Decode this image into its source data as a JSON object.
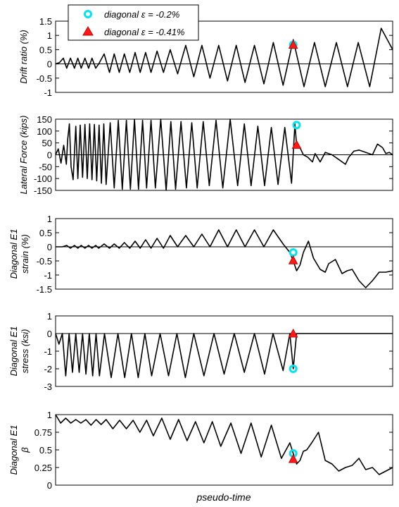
{
  "xlabel": "pseudo-time",
  "legend": {
    "placement": "top-left",
    "entries": [
      {
        "name": "diagonal ε = -0.2%",
        "marker": "circle",
        "color": "#00e5ee"
      },
      {
        "name": "diagonal ε = -0.41%",
        "marker": "triangle",
        "color": "#ff1a1a"
      }
    ]
  },
  "chart_data": [
    {
      "type": "line",
      "ylabel": "Drift ratio (%)",
      "xlim": [
        0,
        100
      ],
      "ylim": [
        -1,
        1.5
      ],
      "yticks": [
        -1,
        -0.5,
        0,
        0.5,
        1,
        1.5
      ],
      "ytick_labels": [
        "-1",
        "-0.5",
        "0",
        "0.5",
        "1",
        "1.5"
      ],
      "zero_line": true,
      "x": [
        0,
        1.2,
        2.3,
        3.3,
        4.4,
        5.6,
        6.6,
        7.6,
        8.7,
        9.8,
        10.8,
        11.9,
        12.8,
        14.4,
        16,
        17.4,
        18.9,
        20.4,
        22,
        23.6,
        25.1,
        26.7,
        28.3,
        30.1,
        32,
        34,
        36.2,
        38.6,
        41,
        43.4,
        45.8,
        48.4,
        51,
        53.6,
        56.2,
        59,
        61.8,
        64.6,
        67.5,
        70.5,
        73.7,
        76.8,
        80,
        83.3,
        86.6,
        89.8,
        93.2,
        96.6,
        100
      ],
      "y": [
        0,
        0.05,
        0.2,
        -0.15,
        0.2,
        -0.15,
        0.2,
        -0.15,
        0.2,
        -0.15,
        0.2,
        -0.15,
        0,
        0.35,
        -0.3,
        0.35,
        -0.3,
        0.35,
        -0.3,
        0.4,
        -0.3,
        0.4,
        -0.3,
        0.45,
        -0.3,
        0.5,
        -0.35,
        0.65,
        -0.45,
        0.65,
        -0.5,
        0.65,
        -0.6,
        0.65,
        -0.65,
        0.65,
        -0.7,
        0.75,
        -0.75,
        0.85,
        -0.8,
        0.75,
        -0.8,
        0.75,
        -0.8,
        0.75,
        -0.8,
        1.25,
        0.5
      ],
      "markers": [
        {
          "series": 0,
          "x": 70.5,
          "y": 0.67
        },
        {
          "series": 1,
          "x": 70.5,
          "y": 0.67
        }
      ]
    },
    {
      "type": "line",
      "ylabel": "Lateral Force (kips)",
      "xlim": [
        0,
        100
      ],
      "ylim": [
        -150,
        150
      ],
      "yticks": [
        -150,
        -100,
        -50,
        0,
        50,
        100,
        150
      ],
      "ytick_labels": [
        "-150",
        "-100",
        "-50",
        "0",
        "50",
        "100",
        "150"
      ],
      "zero_line": true,
      "x": [
        0,
        0.8,
        1.6,
        2.4,
        3.2,
        3.6,
        4.1,
        4.6,
        5.2,
        6.0,
        6.6,
        7.3,
        8.0,
        8.7,
        9.4,
        10.1,
        10.8,
        11.5,
        12.2,
        12.9,
        13.6,
        14.3,
        15.0,
        16.2,
        17.4,
        18.6,
        19.8,
        21.0,
        22.2,
        23.4,
        24.6,
        25.8,
        27.0,
        28.3,
        29.6,
        31.2,
        32.8,
        34.2,
        35.6,
        37.2,
        38.8,
        40.4,
        42.0,
        43.8,
        45.6,
        47.6,
        49.6,
        51.8,
        54.0,
        56.0,
        58.0,
        60.0,
        62.0,
        64.0,
        66.0,
        68.0,
        70.0,
        71.0,
        71.5,
        72.5,
        73.5,
        74.8,
        76.2,
        77.0,
        78.5,
        80.0,
        82.0,
        84.0,
        86.0,
        87.0,
        88.5,
        90.0,
        92.0,
        94.0,
        95.5,
        97.0,
        98.0,
        99.0,
        100
      ],
      "y": [
        0,
        25,
        -35,
        40,
        -40,
        65,
        130,
        -50,
        -105,
        120,
        -100,
        125,
        -95,
        128,
        -100,
        130,
        -105,
        128,
        -110,
        125,
        -120,
        130,
        -125,
        135,
        -140,
        145,
        -145,
        145,
        -145,
        150,
        -145,
        145,
        -140,
        145,
        -140,
        150,
        -150,
        140,
        -145,
        140,
        -140,
        135,
        -140,
        140,
        -130,
        145,
        -140,
        150,
        -130,
        130,
        -130,
        120,
        -130,
        115,
        -125,
        115,
        -120,
        130,
        40,
        30,
        0,
        -10,
        -30,
        5,
        -30,
        10,
        0,
        -20,
        -40,
        -10,
        15,
        20,
        10,
        0,
        45,
        30,
        5,
        10,
        0
      ],
      "markers": [
        {
          "series": 0,
          "x": 71.5,
          "y": 125
        },
        {
          "series": 1,
          "x": 71.5,
          "y": 42
        }
      ]
    },
    {
      "type": "line",
      "ylabel": "Diagonal E1 strain (%)",
      "xlim": [
        0,
        100
      ],
      "ylim": [
        -1.5,
        1
      ],
      "yticks": [
        -1.5,
        -1,
        -0.5,
        0,
        0.5,
        1
      ],
      "ytick_labels": [
        "-1.5",
        "-1",
        "-0.5",
        "0",
        "0.5",
        "1"
      ],
      "zero_line": true,
      "x": [
        0,
        2,
        3.3,
        4.4,
        5.6,
        6.6,
        7.6,
        8.7,
        9.8,
        10.8,
        11.9,
        12.8,
        14.4,
        16,
        17.4,
        18.9,
        20.4,
        22,
        23.6,
        25.1,
        26.7,
        28.3,
        30.1,
        32,
        34,
        36.2,
        38.6,
        41,
        43.4,
        45.8,
        48.4,
        51,
        53.6,
        56.2,
        59,
        61.8,
        64.6,
        67.5,
        69.5,
        70.5,
        71.5,
        72.5,
        73.5,
        75,
        76.5,
        78.5,
        80,
        81,
        83,
        85,
        86.5,
        88,
        90,
        92,
        94,
        96,
        98,
        100
      ],
      "y": [
        0,
        0,
        0.05,
        -0.05,
        0.05,
        -0.05,
        0.05,
        -0.05,
        0.05,
        -0.05,
        0.05,
        -0.05,
        0.1,
        -0.05,
        0.1,
        -0.05,
        0.15,
        -0.05,
        0.2,
        -0.05,
        0.25,
        -0.05,
        0.3,
        -0.05,
        0.4,
        0,
        0.4,
        0,
        0.45,
        0,
        0.6,
        0,
        0.6,
        0,
        0.6,
        0,
        0.6,
        0.1,
        -0.2,
        -0.5,
        -0.85,
        -0.65,
        -0.2,
        0.2,
        -0.4,
        -0.8,
        -0.9,
        -0.6,
        -0.45,
        -0.95,
        -0.85,
        -0.8,
        -1.2,
        -1.45,
        -1.2,
        -0.9,
        -0.9,
        -0.85
      ],
      "markers": [
        {
          "series": 0,
          "x": 70.5,
          "y": -0.2
        },
        {
          "series": 1,
          "x": 70.5,
          "y": -0.48
        }
      ]
    },
    {
      "type": "line",
      "ylabel": "Diagonal E1 stress (ksi)",
      "xlim": [
        0,
        100
      ],
      "ylim": [
        -3,
        1
      ],
      "yticks": [
        -3,
        -2,
        -1,
        0,
        1
      ],
      "ytick_labels": [
        "-3",
        "-2",
        "-1",
        "0",
        "1"
      ],
      "zero_line": true,
      "x": [
        0,
        1,
        2,
        3,
        4,
        5,
        6,
        7,
        8,
        9,
        10,
        11,
        12,
        13,
        14.5,
        16.5,
        18.5,
        20.5,
        22.5,
        24.5,
        26.5,
        28.5,
        31,
        33.5,
        36,
        38.5,
        41,
        44,
        47,
        50,
        53,
        56,
        59,
        62,
        64.5,
        67.5,
        69.5,
        70.5,
        71.5,
        100
      ],
      "y": [
        0,
        -0.6,
        0,
        -2.4,
        0,
        -2.2,
        0,
        -2.2,
        0,
        -2.3,
        0,
        -2.4,
        0,
        -2.4,
        0,
        -2.5,
        0,
        -2.5,
        0,
        -2.5,
        0,
        -2.4,
        0,
        -2.4,
        0,
        -2.5,
        0,
        -2.4,
        0,
        -2.3,
        0,
        -2.2,
        0,
        -2.3,
        0,
        -2.1,
        0,
        -2.0,
        0,
        0
      ],
      "markers": [
        {
          "series": 0,
          "x": 70.5,
          "y": -2.0
        },
        {
          "series": 1,
          "x": 70.5,
          "y": 0
        }
      ]
    },
    {
      "type": "line",
      "ylabel": "Diagonal E1 β",
      "xlabel": "pseudo-time",
      "xlim": [
        0,
        100
      ],
      "ylim": [
        0,
        1
      ],
      "yticks": [
        0,
        0.25,
        0.5,
        0.75,
        1
      ],
      "ytick_labels": [
        "0",
        "0.25",
        "0.5",
        "0.75",
        "1"
      ],
      "zero_line": false,
      "x": [
        0,
        1.5,
        3,
        4.5,
        6,
        7.5,
        9,
        10.5,
        12,
        13.5,
        15,
        17,
        19,
        21,
        23,
        25,
        27,
        29,
        31.5,
        34,
        36.5,
        39,
        41.5,
        44,
        46.5,
        49,
        52,
        55,
        58,
        61,
        64,
        67,
        69.5,
        70.5,
        71.5,
        72.5,
        73.5,
        74.5,
        76,
        78,
        80,
        82,
        84,
        86,
        88,
        90,
        92,
        94,
        96,
        98,
        100
      ],
      "y": [
        1.0,
        0.88,
        0.95,
        0.88,
        0.93,
        0.88,
        0.93,
        0.85,
        0.93,
        0.86,
        0.93,
        0.8,
        0.92,
        0.8,
        0.92,
        0.75,
        0.92,
        0.7,
        0.95,
        0.65,
        0.93,
        0.63,
        0.9,
        0.6,
        0.9,
        0.55,
        0.88,
        0.45,
        0.88,
        0.4,
        0.85,
        0.38,
        0.6,
        0.45,
        0.3,
        0.35,
        0.48,
        0.5,
        0.6,
        0.75,
        0.35,
        0.3,
        0.2,
        0.25,
        0.28,
        0.38,
        0.22,
        0.25,
        0.15,
        0.2,
        0.25
      ],
      "markers": [
        {
          "series": 0,
          "x": 70.5,
          "y": 0.45
        },
        {
          "series": 1,
          "x": 70.5,
          "y": 0.37
        }
      ]
    }
  ]
}
